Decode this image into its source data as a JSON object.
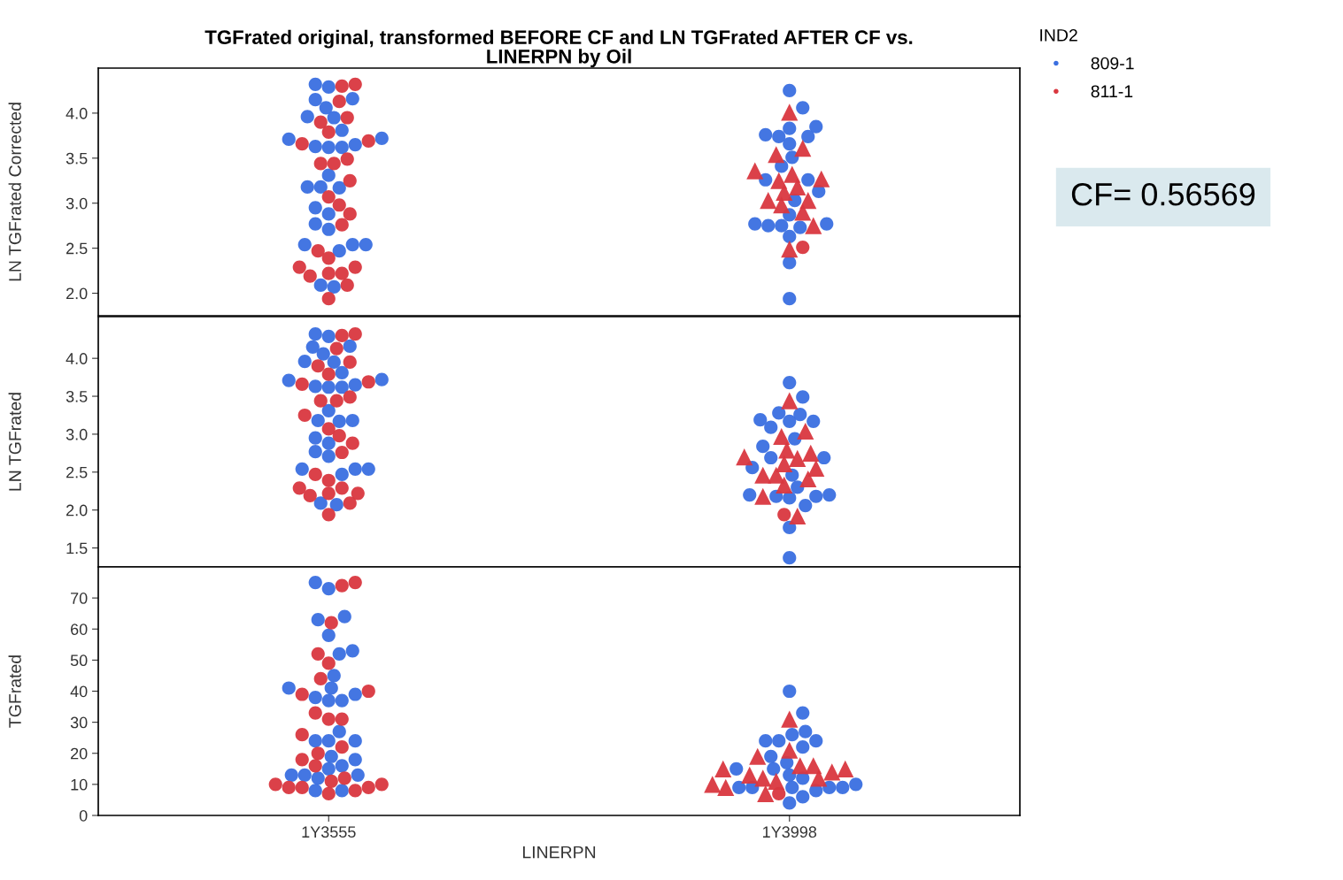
{
  "chart_data": [
    {
      "type": "scatter",
      "title": "TGFrated original, transformed BEFORE CF and LN TGFrated AFTER CF vs.\nLINERPN by Oil",
      "ylabel": "LN TGFrated Corrected",
      "legend_title": "IND2",
      "legend": "top right",
      "tick_labels": "y",
      "grid": false,
      "annotations": [
        "CF= 0.56569"
      ],
      "categories": [
        "1Y3555",
        "1Y3998"
      ],
      "ylim": [
        1.75,
        4.5
      ],
      "yticks": [
        {
          "value": 2,
          "label": "2.0"
        },
        {
          "value": 2.5,
          "label": "2.5"
        },
        {
          "value": 3,
          "label": "3.0"
        },
        {
          "value": 3.5,
          "label": "3.5"
        },
        {
          "value": 4,
          "label": "4.0"
        }
      ],
      "series": [
        {
          "name": "809-1",
          "color": "#3a6fe0",
          "marker": "circle",
          "x": [
            "1Y3555",
            "1Y3555",
            "1Y3555",
            "1Y3555",
            "1Y3555",
            "1Y3555",
            "1Y3555",
            "1Y3555",
            "1Y3555",
            "1Y3555",
            "1Y3555",
            "1Y3555",
            "1Y3555",
            "1Y3555",
            "1Y3555",
            "1Y3555",
            "1Y3555",
            "1Y3555",
            "1Y3555",
            "1Y3555",
            "1Y3555",
            "1Y3555",
            "1Y3555",
            "1Y3555",
            "1Y3555",
            "1Y3555",
            "1Y3555",
            "1Y3555",
            "1Y3998",
            "1Y3998",
            "1Y3998",
            "1Y3998",
            "1Y3998",
            "1Y3998",
            "1Y3998",
            "1Y3998",
            "1Y3998",
            "1Y3998",
            "1Y3998",
            "1Y3998",
            "1Y3998",
            "1Y3998",
            "1Y3998",
            "1Y3998",
            "1Y3998",
            "1Y3998",
            "1Y3998",
            "1Y3998",
            "1Y3998",
            "1Y3998",
            "1Y3998"
          ],
          "values": [
            4.15,
            4.32,
            4.29,
            4.16,
            4.06,
            3.96,
            3.95,
            3.81,
            3.71,
            3.63,
            3.65,
            3.72,
            3.62,
            3.62,
            3.31,
            3.17,
            3.18,
            3.18,
            2.95,
            2.88,
            2.77,
            2.71,
            2.54,
            2.54,
            2.54,
            2.47,
            2.07,
            2.09,
            4.25,
            4.06,
            3.85,
            3.83,
            3.76,
            3.66,
            3.74,
            3.74,
            3.51,
            3.41,
            3.26,
            3.26,
            3.13,
            3.03,
            2.87,
            2.77,
            2.75,
            2.75,
            2.77,
            2.73,
            2.63,
            2.34,
            1.94
          ]
        },
        {
          "name": "811-1",
          "color": "#d9373f",
          "marker": "circle",
          "x": [
            "1Y3555",
            "1Y3555",
            "1Y3555",
            "1Y3555",
            "1Y3555",
            "1Y3555",
            "1Y3555",
            "1Y3555",
            "1Y3555",
            "1Y3555",
            "1Y3555",
            "1Y3555",
            "1Y3555",
            "1Y3555",
            "1Y3555",
            "1Y3555",
            "1Y3555",
            "1Y3555",
            "1Y3555",
            "1Y3555",
            "1Y3555",
            "1Y3555",
            "1Y3555",
            "1Y3555",
            "1Y3555",
            "1Y3998"
          ],
          "values": [
            4.32,
            4.3,
            4.13,
            3.95,
            3.9,
            3.79,
            3.69,
            3.66,
            3.44,
            3.49,
            3.44,
            3.25,
            3.07,
            2.98,
            2.88,
            2.76,
            2.47,
            2.39,
            2.29,
            2.29,
            2.19,
            2.22,
            2.22,
            2.09,
            1.94,
            2.51
          ]
        },
        {
          "color": "#d9373f",
          "marker": "triangle",
          "x": [
            "1Y3998",
            "1Y3998",
            "1Y3998",
            "1Y3998",
            "1Y3998",
            "1Y3998",
            "1Y3998",
            "1Y3998",
            "1Y3998",
            "1Y3998",
            "1Y3998",
            "1Y3998",
            "1Y3998",
            "1Y3998",
            "1Y3998"
          ],
          "values": [
            4.01,
            3.61,
            3.54,
            3.36,
            3.27,
            3.32,
            3.25,
            3.18,
            3.12,
            3.03,
            2.98,
            3.03,
            2.9,
            2.75,
            2.49
          ]
        }
      ]
    },
    {
      "type": "scatter",
      "ylabel": "LN TGFrated",
      "tick_labels": "y",
      "grid": false,
      "categories": [
        "1Y3555",
        "1Y3998"
      ],
      "ylim": [
        1.25,
        4.55
      ],
      "yticks": [
        {
          "value": 1.5,
          "label": "1.5"
        },
        {
          "value": 2,
          "label": "2.0"
        },
        {
          "value": 2.5,
          "label": "2.5"
        },
        {
          "value": 3,
          "label": "3.0"
        },
        {
          "value": 3.5,
          "label": "3.5"
        },
        {
          "value": 4,
          "label": "4.0"
        }
      ],
      "series": [
        {
          "color": "#3a6fe0",
          "marker": "circle",
          "x": [
            "1Y3555",
            "1Y3555",
            "1Y3555",
            "1Y3555",
            "1Y3555",
            "1Y3555",
            "1Y3555",
            "1Y3555",
            "1Y3555",
            "1Y3555",
            "1Y3555",
            "1Y3555",
            "1Y3555",
            "1Y3555",
            "1Y3555",
            "1Y3555",
            "1Y3555",
            "1Y3555",
            "1Y3555",
            "1Y3555",
            "1Y3555",
            "1Y3555",
            "1Y3555",
            "1Y3555",
            "1Y3555",
            "1Y3555",
            "1Y3555",
            "1Y3555",
            "1Y3998",
            "1Y3998",
            "1Y3998",
            "1Y3998",
            "1Y3998",
            "1Y3998",
            "1Y3998",
            "1Y3998",
            "1Y3998",
            "1Y3998",
            "1Y3998",
            "1Y3998",
            "1Y3998",
            "1Y3998",
            "1Y3998",
            "1Y3998",
            "1Y3998",
            "1Y3998",
            "1Y3998",
            "1Y3998",
            "1Y3998",
            "1Y3998",
            "1Y3998"
          ],
          "values": [
            4.15,
            4.32,
            4.29,
            4.16,
            4.06,
            3.96,
            3.95,
            3.81,
            3.71,
            3.63,
            3.65,
            3.72,
            3.62,
            3.62,
            3.31,
            3.17,
            3.18,
            3.18,
            2.95,
            2.88,
            2.77,
            2.71,
            2.54,
            2.54,
            2.54,
            2.47,
            2.07,
            2.09,
            3.68,
            3.49,
            3.28,
            3.26,
            3.19,
            3.09,
            3.17,
            3.17,
            2.94,
            2.84,
            2.69,
            2.69,
            2.56,
            2.46,
            2.3,
            2.2,
            2.18,
            2.18,
            2.2,
            2.16,
            2.06,
            1.77,
            1.37
          ]
        },
        {
          "color": "#d9373f",
          "marker": "circle",
          "x": [
            "1Y3555",
            "1Y3555",
            "1Y3555",
            "1Y3555",
            "1Y3555",
            "1Y3555",
            "1Y3555",
            "1Y3555",
            "1Y3555",
            "1Y3555",
            "1Y3555",
            "1Y3555",
            "1Y3555",
            "1Y3555",
            "1Y3555",
            "1Y3555",
            "1Y3555",
            "1Y3555",
            "1Y3555",
            "1Y3555",
            "1Y3555",
            "1Y3555",
            "1Y3555",
            "1Y3555",
            "1Y3555",
            "1Y3998"
          ],
          "values": [
            4.32,
            4.3,
            4.13,
            3.95,
            3.9,
            3.79,
            3.69,
            3.66,
            3.44,
            3.49,
            3.44,
            3.25,
            3.07,
            2.98,
            2.88,
            2.76,
            2.47,
            2.39,
            2.29,
            2.29,
            2.19,
            2.22,
            2.22,
            2.09,
            1.94,
            1.94
          ]
        },
        {
          "color": "#d9373f",
          "marker": "triangle",
          "x": [
            "1Y3998",
            "1Y3998",
            "1Y3998",
            "1Y3998",
            "1Y3998",
            "1Y3998",
            "1Y3998",
            "1Y3998",
            "1Y3998",
            "1Y3998",
            "1Y3998",
            "1Y3998",
            "1Y3998",
            "1Y3998",
            "1Y3998"
          ],
          "values": [
            3.44,
            3.04,
            2.97,
            2.79,
            2.7,
            2.75,
            2.68,
            2.61,
            2.55,
            2.46,
            2.41,
            2.46,
            2.33,
            2.18,
            1.92
          ]
        }
      ]
    },
    {
      "type": "scatter",
      "xlabel": "LINERPN",
      "ylabel": "TGFrated",
      "grid": false,
      "categories": [
        "1Y3555",
        "1Y3998"
      ],
      "ylim": [
        0,
        80
      ],
      "yticks": [
        0,
        10,
        20,
        30,
        40,
        50,
        60,
        70
      ],
      "series": [
        {
          "color": "#3a6fe0",
          "marker": "circle",
          "x": [
            "1Y3555",
            "1Y3555",
            "1Y3555",
            "1Y3555",
            "1Y3555",
            "1Y3555",
            "1Y3555",
            "1Y3555",
            "1Y3555",
            "1Y3555",
            "1Y3555",
            "1Y3555",
            "1Y3555",
            "1Y3555",
            "1Y3555",
            "1Y3555",
            "1Y3555",
            "1Y3555",
            "1Y3555",
            "1Y3555",
            "1Y3555",
            "1Y3555",
            "1Y3555",
            "1Y3555",
            "1Y3555",
            "1Y3555",
            "1Y3555",
            "1Y3555",
            "1Y3998",
            "1Y3998",
            "1Y3998",
            "1Y3998",
            "1Y3998",
            "1Y3998",
            "1Y3998",
            "1Y3998",
            "1Y3998",
            "1Y3998",
            "1Y3998",
            "1Y3998",
            "1Y3998",
            "1Y3998",
            "1Y3998",
            "1Y3998",
            "1Y3998",
            "1Y3998",
            "1Y3998",
            "1Y3998",
            "1Y3998",
            "1Y3998",
            "1Y3998"
          ],
          "values": [
            63,
            75,
            73,
            64,
            58,
            53,
            52,
            45,
            41,
            38,
            39,
            41,
            37,
            37,
            27,
            24,
            24,
            24,
            19,
            18,
            16,
            15,
            13,
            13,
            13,
            12,
            8,
            8,
            40,
            33,
            27,
            26,
            24,
            22,
            24,
            24,
            19,
            17,
            15,
            15,
            13,
            12,
            10,
            9,
            9,
            9,
            9,
            9,
            8,
            6,
            4
          ]
        },
        {
          "color": "#d9373f",
          "marker": "circle",
          "x": [
            "1Y3555",
            "1Y3555",
            "1Y3555",
            "1Y3555",
            "1Y3555",
            "1Y3555",
            "1Y3555",
            "1Y3555",
            "1Y3555",
            "1Y3555",
            "1Y3555",
            "1Y3555",
            "1Y3555",
            "1Y3555",
            "1Y3555",
            "1Y3555",
            "1Y3555",
            "1Y3555",
            "1Y3555",
            "1Y3555",
            "1Y3555",
            "1Y3555",
            "1Y3555",
            "1Y3555",
            "1Y3555",
            "1Y3998"
          ],
          "values": [
            75,
            74,
            62,
            52,
            49,
            44,
            40,
            39,
            31,
            33,
            31,
            26,
            22,
            20,
            18,
            16,
            12,
            11,
            10,
            10,
            9,
            9,
            9,
            8,
            7,
            7
          ]
        },
        {
          "color": "#d9373f",
          "marker": "triangle",
          "x": [
            "1Y3998",
            "1Y3998",
            "1Y3998",
            "1Y3998",
            "1Y3998",
            "1Y3998",
            "1Y3998",
            "1Y3998",
            "1Y3998",
            "1Y3998",
            "1Y3998",
            "1Y3998",
            "1Y3998",
            "1Y3998",
            "1Y3998"
          ],
          "values": [
            31,
            21,
            19,
            16,
            15,
            16,
            15,
            14,
            13,
            12,
            11,
            12,
            10,
            9,
            7
          ]
        }
      ]
    }
  ]
}
